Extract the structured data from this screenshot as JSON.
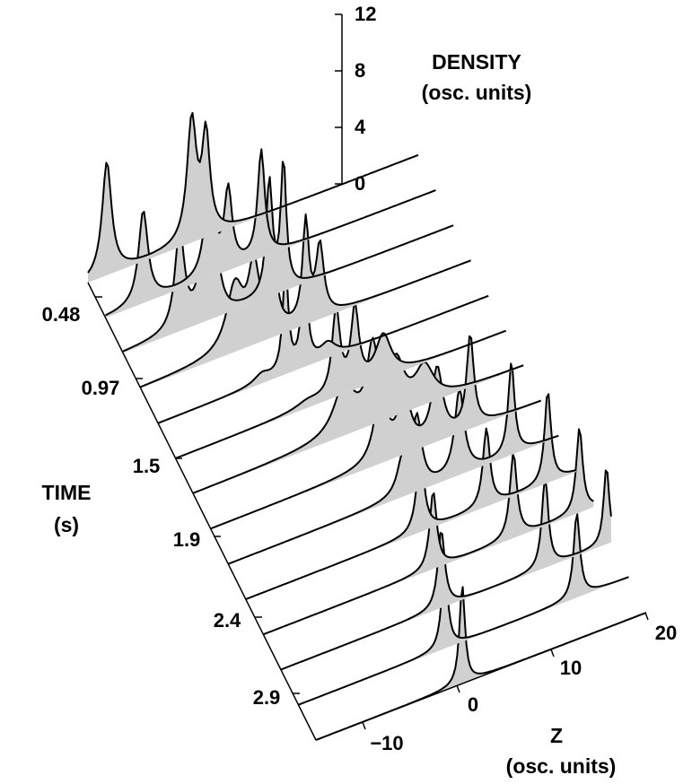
{
  "chart_data": {
    "type": "area",
    "style": "3d-waterfall",
    "density_axis": {
      "title": "DENSITY",
      "unit": "(osc. units)",
      "ticks": [
        "0",
        "4",
        "8",
        "12"
      ],
      "range": [
        0,
        12
      ]
    },
    "time_axis": {
      "title": "TIME",
      "unit": "(s)",
      "ticks": [
        "0.48",
        "0.97",
        "1.5",
        "1.9",
        "2.4",
        "2.9"
      ]
    },
    "z_axis": {
      "title": "Z",
      "unit": "(osc. units)",
      "ticks": [
        "−10",
        "0",
        "10",
        "20"
      ],
      "range": [
        -15,
        20
      ]
    },
    "slices": [
      {
        "peaks": [
          [
            -13.0,
            8.0,
            0.6
          ],
          [
            -4.0,
            8.5,
            0.6
          ],
          [
            -2.5,
            7.0,
            0.5
          ]
        ]
      },
      {
        "peaks": [
          [
            -11.0,
            6.5,
            0.6
          ],
          [
            -4.0,
            6.5,
            0.6
          ],
          [
            -2.0,
            5.5,
            0.5
          ],
          [
            1.5,
            7.5,
            0.45
          ]
        ]
      },
      {
        "peaks": [
          [
            -9.0,
            7.0,
            0.6
          ],
          [
            -6.5,
            4.5,
            0.7
          ],
          [
            -5.0,
            3.0,
            0.6
          ],
          [
            0.5,
            8.0,
            0.4
          ],
          [
            2.0,
            9.0,
            0.35
          ]
        ]
      },
      {
        "peaks": [
          [
            -5.0,
            4.5,
            1.1
          ],
          [
            -3.0,
            5.0,
            0.7
          ],
          [
            -1.0,
            6.0,
            0.5
          ],
          [
            2.5,
            7.0,
            0.4
          ],
          [
            4.0,
            5.0,
            0.5
          ]
        ]
      },
      {
        "peaks": [
          [
            -4.0,
            0.6,
            1.0
          ],
          [
            -1.5,
            7.5,
            0.35
          ],
          [
            0.5,
            8.0,
            0.35
          ],
          [
            3.0,
            1.0,
            1.0
          ]
        ]
      },
      {
        "peaks": [
          [
            -1.0,
            0.4,
            1.5
          ],
          [
            2.0,
            6.0,
            0.5
          ],
          [
            4.0,
            5.5,
            0.5
          ],
          [
            7.0,
            3.0,
            1.0
          ]
        ]
      },
      {
        "peaks": [
          [
            1.0,
            3.5,
            1.3
          ],
          [
            4.0,
            5.0,
            0.7
          ],
          [
            6.5,
            3.5,
            1.0
          ],
          [
            9.5,
            2.5,
            1.2
          ]
        ]
      },
      {
        "peaks": [
          [
            3.0,
            5.0,
            0.8
          ],
          [
            5.5,
            4.0,
            0.8
          ],
          [
            9.0,
            5.0,
            0.7
          ],
          [
            12.5,
            6.5,
            0.45
          ]
        ]
      },
      {
        "peaks": [
          [
            3.5,
            2.5,
            0.7
          ],
          [
            5.0,
            5.0,
            0.6
          ],
          [
            9.5,
            6.0,
            0.6
          ],
          [
            15.0,
            6.5,
            0.4
          ]
        ]
      },
      {
        "peaks": [
          [
            3.5,
            5.5,
            0.5
          ],
          [
            10.5,
            5.5,
            0.45
          ],
          [
            17.0,
            6.5,
            0.4
          ]
        ]
      },
      {
        "peaks": [
          [
            3.0,
            5.5,
            0.45
          ],
          [
            11.5,
            6.0,
            0.45
          ],
          [
            18.5,
            6.0,
            0.4
          ]
        ]
      },
      {
        "peaks": [
          [
            2.0,
            5.5,
            0.45
          ],
          [
            13.0,
            6.5,
            0.4
          ],
          [
            19.5,
            5.5,
            0.35
          ]
        ]
      },
      {
        "peaks": [
          [
            0.5,
            6.0,
            0.4
          ],
          [
            14.5,
            6.0,
            0.4
          ]
        ]
      },
      {
        "peaks": [
          [
            0.5,
            7.0,
            0.35
          ]
        ]
      }
    ]
  }
}
